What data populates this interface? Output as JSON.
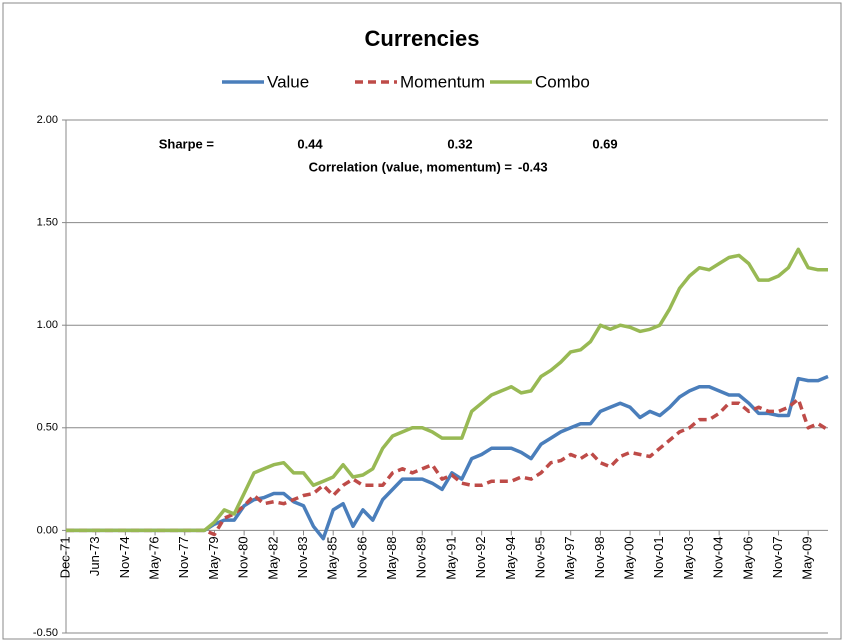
{
  "chart_data": {
    "type": "line",
    "title": "Currencies",
    "categories": [
      "Dec-71",
      null,
      null,
      "Jun-73",
      null,
      null,
      "Nov-74",
      null,
      null,
      "May-76",
      null,
      null,
      "Nov-77",
      null,
      null,
      "May-79",
      null,
      null,
      "Nov-80",
      null,
      null,
      "May-82",
      null,
      null,
      "Nov-83",
      null,
      null,
      "May-85",
      null,
      null,
      "Nov-86",
      null,
      null,
      "May-88",
      null,
      null,
      "Nov-89",
      null,
      null,
      "May-91",
      null,
      null,
      "Nov-92",
      null,
      null,
      "May-94",
      null,
      null,
      "Nov-95",
      null,
      null,
      "May-97",
      null,
      null,
      "Nov-98",
      null,
      null,
      "May-00",
      null,
      null,
      "Nov-01",
      null,
      null,
      "May-03",
      null,
      null,
      "Nov-04",
      null,
      null,
      "May-06",
      null,
      null,
      "Nov-07",
      null,
      null,
      "May-09",
      null,
      null
    ],
    "series": [
      {
        "name": "Value",
        "color": "#4a7ebb",
        "dash": false,
        "values": [
          0,
          0,
          0,
          0,
          0,
          0,
          0,
          0,
          0,
          0,
          0,
          0,
          0,
          0,
          0,
          0.03,
          0.05,
          0.05,
          0.12,
          0.15,
          0.16,
          0.18,
          0.18,
          0.14,
          0.12,
          0.02,
          -0.04,
          0.1,
          0.13,
          0.02,
          0.1,
          0.05,
          0.15,
          0.2,
          0.25,
          0.25,
          0.25,
          0.23,
          0.2,
          0.28,
          0.25,
          0.35,
          0.37,
          0.4,
          0.4,
          0.4,
          0.38,
          0.35,
          0.42,
          0.45,
          0.48,
          0.5,
          0.52,
          0.52,
          0.58,
          0.6,
          0.62,
          0.6,
          0.55,
          0.58,
          0.56,
          0.6,
          0.65,
          0.68,
          0.7,
          0.7,
          0.68,
          0.66,
          0.66,
          0.62,
          0.57,
          0.57,
          0.56,
          0.56,
          0.74,
          0.73,
          0.73,
          0.75
        ]
      },
      {
        "name": "Momentum",
        "color": "#be4b48",
        "dash": true,
        "values": [
          0,
          0,
          0,
          0,
          0,
          0,
          0,
          0,
          0,
          0,
          0,
          0,
          0,
          0,
          0,
          -0.02,
          0.06,
          0.08,
          0.12,
          0.17,
          0.13,
          0.14,
          0.13,
          0.15,
          0.17,
          0.18,
          0.22,
          0.17,
          0.22,
          0.25,
          0.22,
          0.22,
          0.22,
          0.28,
          0.3,
          0.28,
          0.3,
          0.32,
          0.25,
          0.27,
          0.23,
          0.22,
          0.22,
          0.24,
          0.24,
          0.24,
          0.26,
          0.25,
          0.28,
          0.33,
          0.34,
          0.37,
          0.35,
          0.38,
          0.33,
          0.31,
          0.36,
          0.38,
          0.37,
          0.36,
          0.4,
          0.44,
          0.48,
          0.5,
          0.54,
          0.54,
          0.57,
          0.62,
          0.62,
          0.58,
          0.6,
          0.58,
          0.58,
          0.6,
          0.64,
          0.5,
          0.52,
          0.49
        ]
      },
      {
        "name": "Combo",
        "color": "#98b954",
        "dash": false,
        "values": [
          0,
          0,
          0,
          0,
          0,
          0,
          0,
          0,
          0,
          0,
          0,
          0,
          0,
          0,
          0,
          0.04,
          0.1,
          0.08,
          0.18,
          0.28,
          0.3,
          0.32,
          0.33,
          0.28,
          0.28,
          0.22,
          0.24,
          0.26,
          0.32,
          0.26,
          0.27,
          0.3,
          0.4,
          0.46,
          0.48,
          0.5,
          0.5,
          0.48,
          0.45,
          0.45,
          0.45,
          0.58,
          0.62,
          0.66,
          0.68,
          0.7,
          0.67,
          0.68,
          0.75,
          0.78,
          0.82,
          0.87,
          0.88,
          0.92,
          1.0,
          0.98,
          1.0,
          0.99,
          0.97,
          0.98,
          1.0,
          1.08,
          1.18,
          1.24,
          1.28,
          1.27,
          1.3,
          1.33,
          1.34,
          1.3,
          1.22,
          1.22,
          1.24,
          1.28,
          1.37,
          1.28,
          1.27,
          1.27
        ]
      }
    ],
    "ylim": [
      -0.5,
      2.0
    ],
    "yticks": [
      {
        "value": -0.5,
        "label": "-0.50"
      },
      {
        "value": 0,
        "label": "0.00"
      },
      {
        "value": 0.5,
        "label": "0.50"
      },
      {
        "value": 1,
        "label": "1.00"
      },
      {
        "value": 1.5,
        "label": "1.50"
      },
      {
        "value": 2,
        "label": "2.00"
      }
    ],
    "grid": true,
    "annotations": {
      "sharpe_label": "Sharpe =",
      "sharpe_value": "0.44",
      "sharpe_momentum": "0.32",
      "sharpe_combo": "0.69",
      "correlation_label": "Correlation (value, momentum) =",
      "correlation_value": "-0.43"
    }
  }
}
